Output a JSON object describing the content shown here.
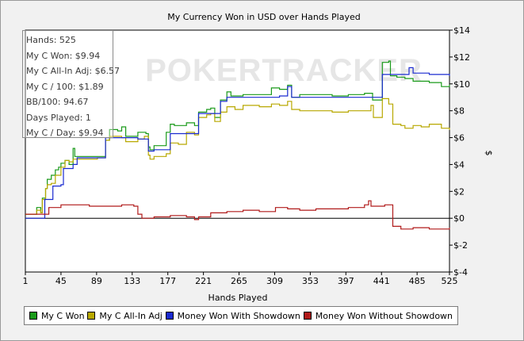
{
  "chart_data": {
    "type": "line",
    "title": "My Currency Won in USD over Hands Played",
    "xlabel": "Hands Played",
    "ylabel": "$",
    "xlim": [
      1,
      525
    ],
    "ylim": [
      -4,
      14
    ],
    "x_ticks": [
      "1",
      "45",
      "89",
      "133",
      "177",
      "221",
      "265",
      "309",
      "353",
      "397",
      "441",
      "485",
      "525"
    ],
    "y_ticks": [
      "$14",
      "$12",
      "$10",
      "$8",
      "$6",
      "$4",
      "$2",
      "$0",
      "$-2",
      "$-4"
    ],
    "watermark": "POKERTRACKER",
    "stats": [
      "Hands: 525",
      "My C Won: $9.94",
      "My C All-In Adj: $6.57",
      "My C / 100: $1.89",
      "BB/100: 94.67",
      "Days Played: 1",
      "My C / Day: $9.94"
    ],
    "series": [
      {
        "name": "My C Won",
        "color": "#1a9a1a",
        "points": [
          [
            1,
            0.3
          ],
          [
            10,
            0.3
          ],
          [
            15,
            0.8
          ],
          [
            20,
            0.4
          ],
          [
            22,
            1.5
          ],
          [
            26,
            2.2
          ],
          [
            28,
            2.9
          ],
          [
            33,
            3.2
          ],
          [
            38,
            3.6
          ],
          [
            42,
            3.8
          ],
          [
            45,
            4.1
          ],
          [
            50,
            4.3
          ],
          [
            55,
            4.0
          ],
          [
            60,
            5.2
          ],
          [
            62,
            4.6
          ],
          [
            70,
            4.6
          ],
          [
            90,
            4.6
          ],
          [
            100,
            5.8
          ],
          [
            105,
            6.6
          ],
          [
            115,
            6.5
          ],
          [
            120,
            6.8
          ],
          [
            125,
            6.1
          ],
          [
            140,
            6.4
          ],
          [
            150,
            6.3
          ],
          [
            153,
            5.3
          ],
          [
            155,
            5.1
          ],
          [
            160,
            5.4
          ],
          [
            175,
            6.4
          ],
          [
            180,
            7.0
          ],
          [
            185,
            6.9
          ],
          [
            200,
            7.1
          ],
          [
            210,
            6.9
          ],
          [
            215,
            7.9
          ],
          [
            225,
            8.1
          ],
          [
            230,
            8.2
          ],
          [
            235,
            7.5
          ],
          [
            242,
            8.8
          ],
          [
            250,
            9.4
          ],
          [
            255,
            9.1
          ],
          [
            270,
            9.2
          ],
          [
            290,
            9.2
          ],
          [
            305,
            9.7
          ],
          [
            315,
            9.6
          ],
          [
            325,
            9.9
          ],
          [
            330,
            9.0
          ],
          [
            340,
            9.2
          ],
          [
            360,
            9.2
          ],
          [
            380,
            9.1
          ],
          [
            400,
            9.2
          ],
          [
            420,
            9.3
          ],
          [
            430,
            8.8
          ],
          [
            442,
            11.6
          ],
          [
            450,
            11.7
          ],
          [
            452,
            10.6
          ],
          [
            460,
            10.5
          ],
          [
            470,
            10.4
          ],
          [
            480,
            10.2
          ],
          [
            500,
            10.1
          ],
          [
            515,
            9.8
          ],
          [
            525,
            9.94
          ]
        ]
      },
      {
        "name": "My C All-In Adj",
        "color": "#b8a800",
        "points": [
          [
            1,
            0.3
          ],
          [
            10,
            0.3
          ],
          [
            15,
            0.6
          ],
          [
            20,
            0.4
          ],
          [
            22,
            1.4
          ],
          [
            26,
            2.2
          ],
          [
            28,
            2.5
          ],
          [
            33,
            2.6
          ],
          [
            38,
            3.2
          ],
          [
            45,
            3.8
          ],
          [
            50,
            4.3
          ],
          [
            55,
            4.2
          ],
          [
            60,
            4.4
          ],
          [
            90,
            4.5
          ],
          [
            100,
            5.8
          ],
          [
            105,
            6.1
          ],
          [
            120,
            6.0
          ],
          [
            125,
            5.7
          ],
          [
            140,
            5.9
          ],
          [
            148,
            6.1
          ],
          [
            153,
            4.7
          ],
          [
            155,
            4.4
          ],
          [
            160,
            4.6
          ],
          [
            175,
            4.8
          ],
          [
            180,
            5.6
          ],
          [
            190,
            5.5
          ],
          [
            200,
            6.4
          ],
          [
            210,
            6.2
          ],
          [
            215,
            7.5
          ],
          [
            225,
            7.7
          ],
          [
            230,
            7.8
          ],
          [
            235,
            7.2
          ],
          [
            242,
            7.9
          ],
          [
            250,
            8.3
          ],
          [
            260,
            8.1
          ],
          [
            270,
            8.4
          ],
          [
            290,
            8.3
          ],
          [
            305,
            8.5
          ],
          [
            315,
            8.4
          ],
          [
            325,
            8.7
          ],
          [
            330,
            8.1
          ],
          [
            340,
            8.0
          ],
          [
            360,
            8.0
          ],
          [
            380,
            7.9
          ],
          [
            400,
            8.0
          ],
          [
            420,
            8.0
          ],
          [
            428,
            8.4
          ],
          [
            431,
            7.5
          ],
          [
            442,
            8.9
          ],
          [
            450,
            8.5
          ],
          [
            455,
            7.0
          ],
          [
            465,
            6.9
          ],
          [
            470,
            6.7
          ],
          [
            480,
            6.9
          ],
          [
            490,
            6.8
          ],
          [
            500,
            7.0
          ],
          [
            515,
            6.7
          ],
          [
            525,
            6.57
          ]
        ]
      },
      {
        "name": "Money Won With Showdown",
        "color": "#1a2ad0",
        "points": [
          [
            1,
            0.0
          ],
          [
            22,
            0.0
          ],
          [
            25,
            1.4
          ],
          [
            35,
            2.4
          ],
          [
            45,
            2.5
          ],
          [
            48,
            3.7
          ],
          [
            60,
            4.0
          ],
          [
            65,
            4.5
          ],
          [
            90,
            4.5
          ],
          [
            100,
            6.0
          ],
          [
            140,
            5.9
          ],
          [
            153,
            5.0
          ],
          [
            160,
            5.1
          ],
          [
            180,
            6.3
          ],
          [
            200,
            6.3
          ],
          [
            215,
            7.8
          ],
          [
            242,
            8.7
          ],
          [
            250,
            9.0
          ],
          [
            270,
            9.0
          ],
          [
            300,
            9.0
          ],
          [
            315,
            9.1
          ],
          [
            325,
            9.8
          ],
          [
            330,
            9.0
          ],
          [
            360,
            9.0
          ],
          [
            400,
            9.0
          ],
          [
            442,
            10.7
          ],
          [
            472,
            10.7
          ],
          [
            475,
            11.2
          ],
          [
            480,
            10.8
          ],
          [
            500,
            10.7
          ],
          [
            525,
            10.6
          ]
        ]
      },
      {
        "name": "Money Won Without Showdown",
        "color": "#b01a1a",
        "points": [
          [
            1,
            0.3
          ],
          [
            22,
            0.3
          ],
          [
            30,
            0.8
          ],
          [
            45,
            1.0
          ],
          [
            60,
            1.0
          ],
          [
            80,
            0.9
          ],
          [
            100,
            0.9
          ],
          [
            120,
            1.0
          ],
          [
            135,
            0.9
          ],
          [
            140,
            0.3
          ],
          [
            145,
            0.0
          ],
          [
            160,
            0.1
          ],
          [
            180,
            0.2
          ],
          [
            200,
            0.1
          ],
          [
            210,
            -0.1
          ],
          [
            215,
            0.1
          ],
          [
            230,
            0.4
          ],
          [
            250,
            0.5
          ],
          [
            270,
            0.6
          ],
          [
            290,
            0.5
          ],
          [
            310,
            0.8
          ],
          [
            325,
            0.7
          ],
          [
            340,
            0.6
          ],
          [
            360,
            0.7
          ],
          [
            380,
            0.7
          ],
          [
            400,
            0.8
          ],
          [
            420,
            1.0
          ],
          [
            425,
            1.3
          ],
          [
            428,
            0.9
          ],
          [
            440,
            0.9
          ],
          [
            445,
            1.0
          ],
          [
            455,
            -0.6
          ],
          [
            465,
            -0.8
          ],
          [
            480,
            -0.7
          ],
          [
            500,
            -0.8
          ],
          [
            515,
            -0.8
          ],
          [
            525,
            -0.7
          ]
        ]
      }
    ]
  }
}
